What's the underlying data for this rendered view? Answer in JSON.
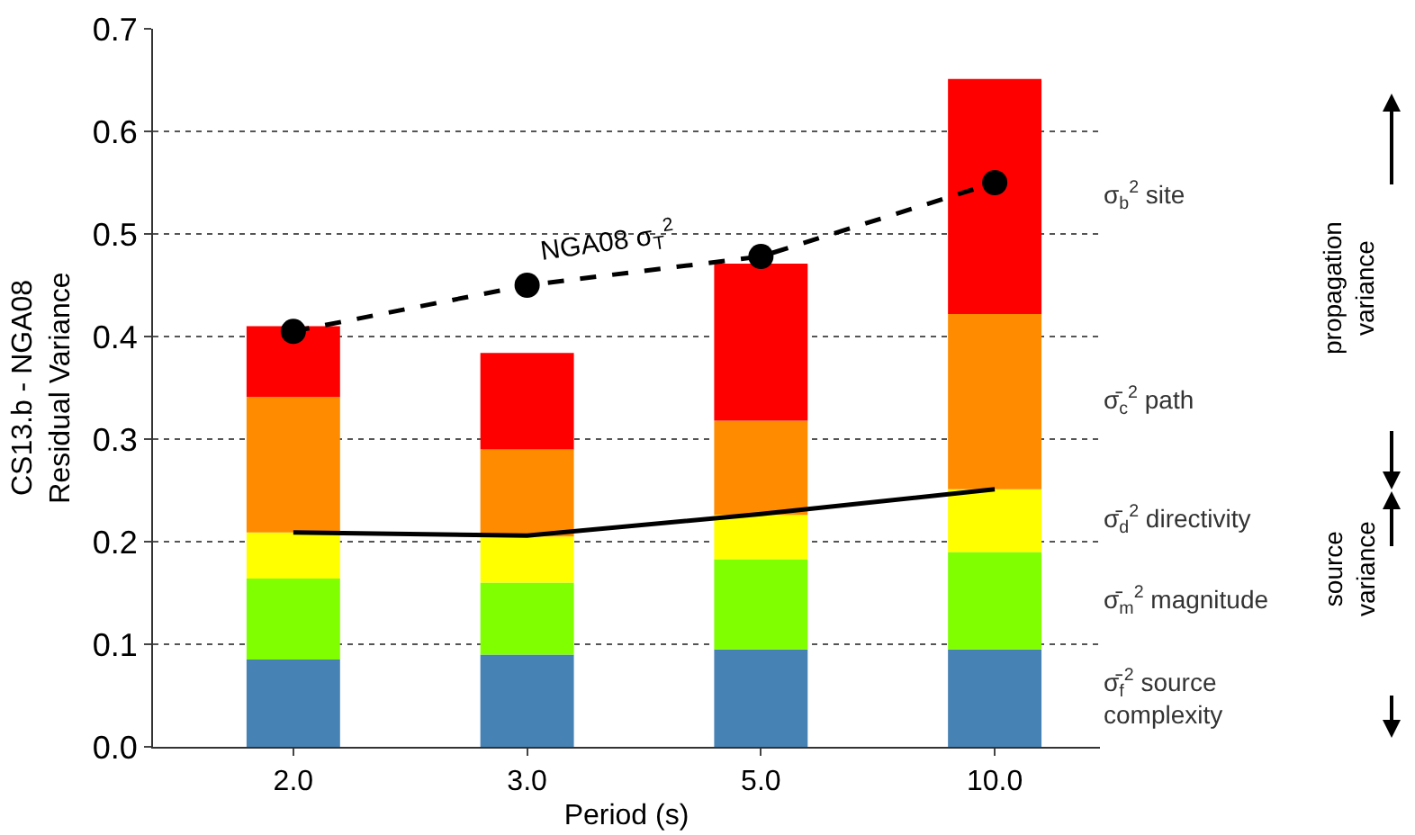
{
  "chart_data": {
    "type": "bar",
    "stacked": true,
    "xlabel": "Period (s)",
    "ylabel": "CS13.b - NGA08\nResidual Variance",
    "categories": [
      "2.0",
      "3.0",
      "5.0",
      "10.0"
    ],
    "series": [
      {
        "name": "σ̄$_{f}$$^{2}$ source\ncomplexity",
        "color": "#4682b4",
        "values": [
          0.085,
          0.09,
          0.095,
          0.095
        ]
      },
      {
        "name": "σ̄$_{m}$$^{2}$ magnitude",
        "color": "#7fff00",
        "values": [
          0.079,
          0.07,
          0.088,
          0.095
        ]
      },
      {
        "name": "σ̄$_{d}$$^{2}$ directivity",
        "color": "#ffff00",
        "values": [
          0.045,
          0.045,
          0.043,
          0.061
        ]
      },
      {
        "name": "σ̄$_{c}$$^{2}$ path",
        "color": "#ff8c00",
        "values": [
          0.132,
          0.085,
          0.092,
          0.171
        ]
      },
      {
        "name": "σ$_{b}$$^{2}$ site",
        "color": "#ff0000",
        "values": [
          0.069,
          0.094,
          0.153,
          0.229
        ]
      },
      {
        "type": "line",
        "name": "NGA08 σ$_{T}$$^{2}$",
        "color": "#000000",
        "line_style": "dashed",
        "marker": "circle",
        "values": [
          0.405,
          0.45,
          0.478,
          0.55
        ]
      },
      {
        "type": "line",
        "color": "#000000",
        "line_style": "solid",
        "marker": "none",
        "values": [
          0.209,
          0.206,
          0.227,
          0.251
        ]
      }
    ],
    "ylim": [
      0,
      0.7
    ],
    "yticks": [
      {
        "value": 0,
        "label": "0.0"
      },
      0.1,
      0.2,
      0.3,
      0.4,
      0.5,
      0.6,
      0.7
    ],
    "grid": "y",
    "legend": false,
    "annotations": [
      "propagation\nvariance",
      "source\nvariance"
    ]
  }
}
